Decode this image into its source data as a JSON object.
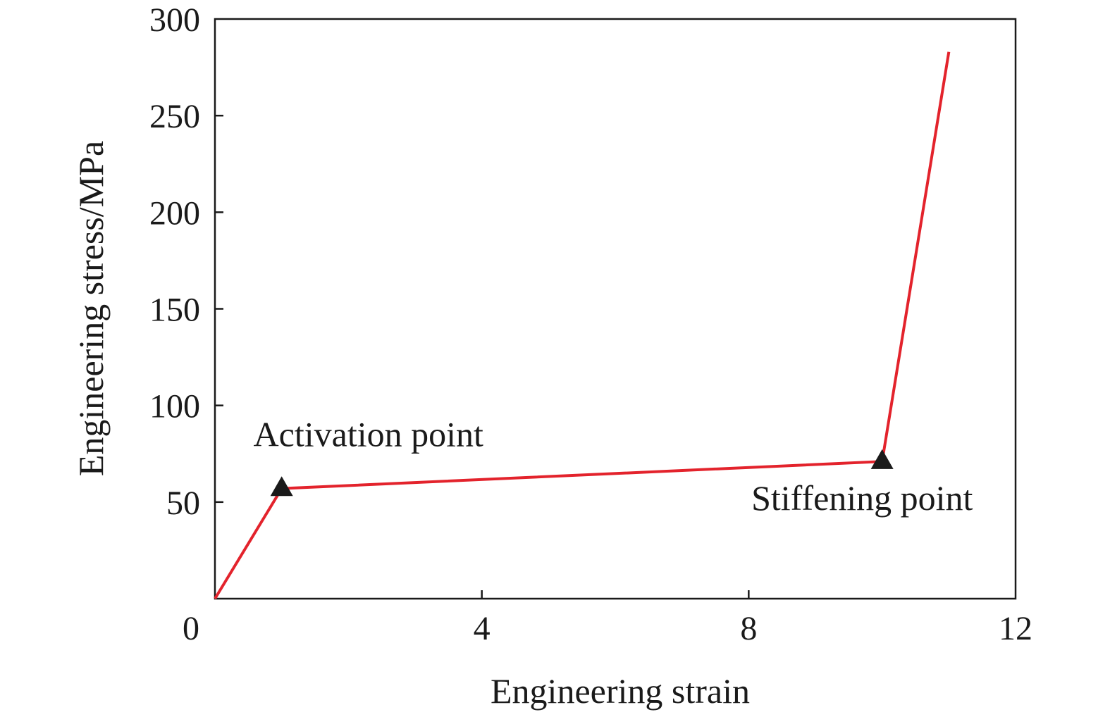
{
  "chart_data": {
    "type": "line",
    "title": "",
    "xlabel": "Engineering strain",
    "ylabel": "Engineering stress/MPa",
    "xlim": [
      0,
      12
    ],
    "ylim": [
      0,
      300
    ],
    "x_ticks": [
      0,
      4,
      8,
      12
    ],
    "y_ticks": [
      50,
      100,
      150,
      200,
      250,
      300
    ],
    "x_tick_labels": [
      "0",
      "4",
      "8",
      "12"
    ],
    "y_tick_labels": [
      "50",
      "100",
      "150",
      "200",
      "250",
      "300"
    ],
    "grid": false,
    "series": [
      {
        "color": "#e3232c",
        "x": [
          0,
          1.0,
          10.0,
          11.0
        ],
        "y": [
          0,
          57,
          71,
          283
        ]
      }
    ],
    "markers": [
      {
        "x": 1.0,
        "y": 57,
        "shape": "triangle",
        "color": "#1a1a1a"
      },
      {
        "x": 10.0,
        "y": 71,
        "shape": "triangle",
        "color": "#1a1a1a"
      }
    ],
    "annotations": [
      {
        "text": "Activation point",
        "x": 2.3,
        "y": 79
      },
      {
        "text": "Stiffening point",
        "x": 9.7,
        "y": 46
      }
    ]
  }
}
